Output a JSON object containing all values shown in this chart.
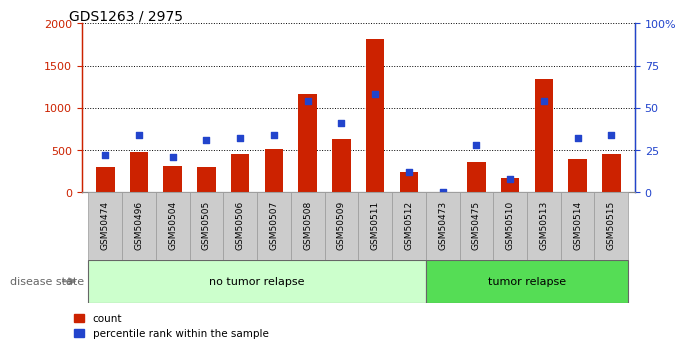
{
  "title": "GDS1263 / 2975",
  "samples": [
    "GSM50474",
    "GSM50496",
    "GSM50504",
    "GSM50505",
    "GSM50506",
    "GSM50507",
    "GSM50508",
    "GSM50509",
    "GSM50511",
    "GSM50512",
    "GSM50473",
    "GSM50475",
    "GSM50510",
    "GSM50513",
    "GSM50514",
    "GSM50515"
  ],
  "counts": [
    300,
    480,
    310,
    295,
    450,
    510,
    1160,
    630,
    1820,
    240,
    5,
    355,
    165,
    1340,
    400,
    460
  ],
  "percentiles": [
    22,
    34,
    21,
    31,
    32,
    34,
    54,
    41,
    58,
    12,
    0,
    28,
    8,
    54,
    32,
    34
  ],
  "no_tumor_count": 10,
  "tumor_count": 6,
  "bar_color": "#cc2200",
  "dot_color": "#2244cc",
  "ylim_left": [
    0,
    2000
  ],
  "ylim_right": [
    0,
    100
  ],
  "yticks_left": [
    0,
    500,
    1000,
    1500,
    2000
  ],
  "yticks_right": [
    0,
    25,
    50,
    75,
    100
  ],
  "no_tumor_bg": "#ccffcc",
  "tumor_bg": "#55dd55",
  "label_bg": "#cccccc",
  "bar_width": 0.55
}
